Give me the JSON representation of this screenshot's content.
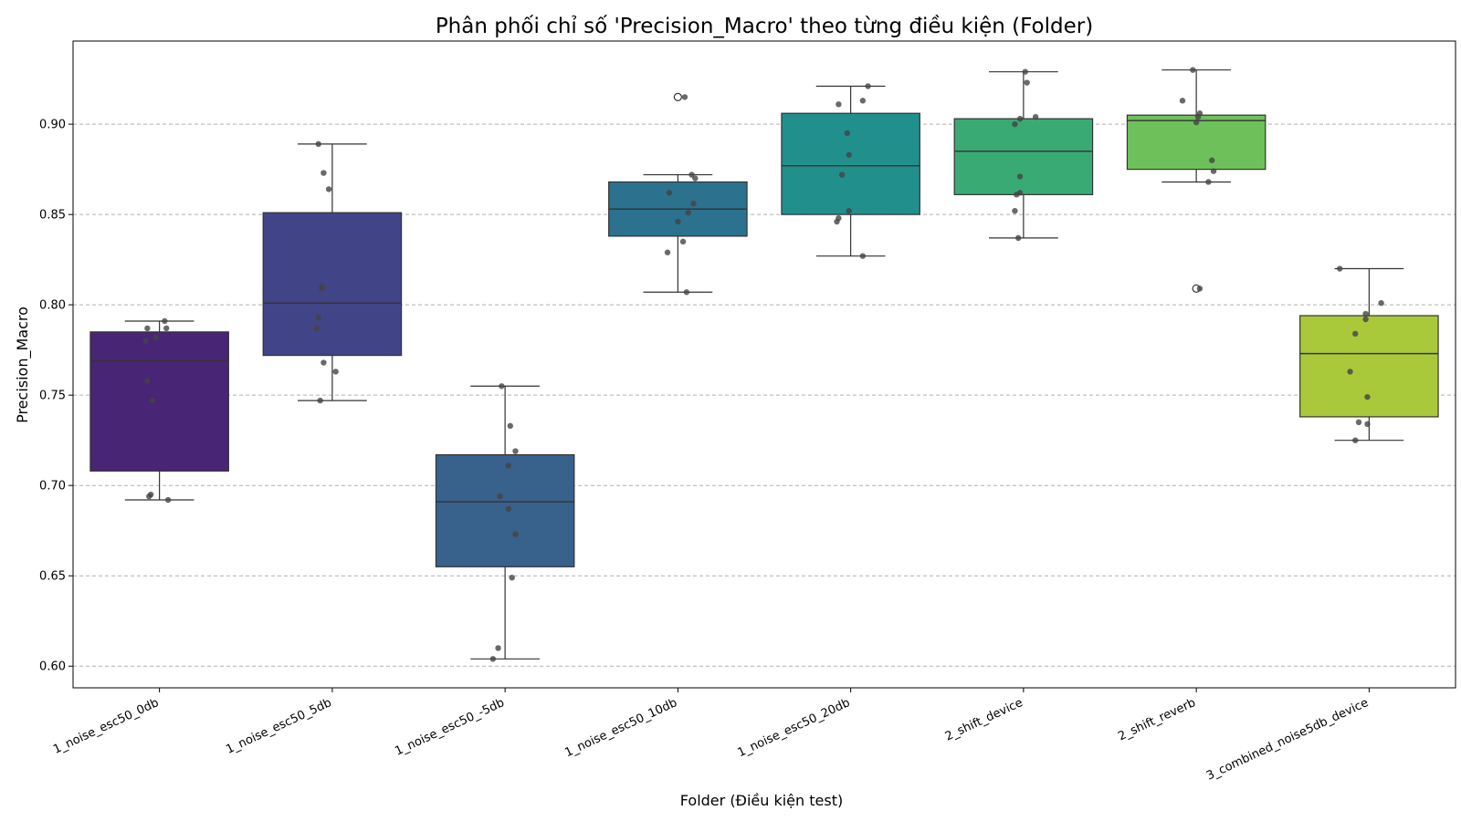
{
  "chart_data": {
    "type": "box",
    "title": "Phân phối chỉ số 'Precision_Macro' theo từng điều kiện (Folder)",
    "xlabel": "Folder (Điều kiện test)",
    "ylabel": "Precision_Macro",
    "ylim": [
      0.588,
      0.946
    ],
    "yticks": [
      "0.60",
      "0.65",
      "0.70",
      "0.75",
      "0.80",
      "0.85",
      "0.90"
    ],
    "grid": "horizontal-dashed",
    "categories": [
      "1_noise_esc50_0db",
      "1_noise_esc50_5db",
      "1_noise_esc50_-5db",
      "1_noise_esc50_10db",
      "1_noise_esc50_20db",
      "2_shift_device",
      "2_shift_reverb",
      "3_combined_noise5db_device"
    ],
    "colors": [
      "#482575",
      "#414487",
      "#38618c",
      "#2c728e",
      "#21908d",
      "#3aaa74",
      "#6ec05b",
      "#aac93a"
    ],
    "boxes": [
      {
        "q1": 0.708,
        "median": 0.769,
        "q3": 0.785,
        "whisker_low": 0.692,
        "whisker_high": 0.791,
        "outliers": []
      },
      {
        "q1": 0.772,
        "median": 0.801,
        "q3": 0.851,
        "whisker_low": 0.747,
        "whisker_high": 0.889,
        "outliers": []
      },
      {
        "q1": 0.655,
        "median": 0.691,
        "q3": 0.717,
        "whisker_low": 0.604,
        "whisker_high": 0.755,
        "outliers": []
      },
      {
        "q1": 0.838,
        "median": 0.853,
        "q3": 0.868,
        "whisker_low": 0.807,
        "whisker_high": 0.872,
        "outliers": [
          0.915
        ]
      },
      {
        "q1": 0.85,
        "median": 0.877,
        "q3": 0.906,
        "whisker_low": 0.827,
        "whisker_high": 0.921,
        "outliers": []
      },
      {
        "q1": 0.861,
        "median": 0.885,
        "q3": 0.903,
        "whisker_low": 0.837,
        "whisker_high": 0.929,
        "outliers": []
      },
      {
        "q1": 0.875,
        "median": 0.902,
        "q3": 0.905,
        "whisker_low": 0.868,
        "whisker_high": 0.93,
        "outliers": [
          0.809
        ]
      },
      {
        "q1": 0.738,
        "median": 0.773,
        "q3": 0.794,
        "whisker_low": 0.725,
        "whisker_high": 0.82,
        "outliers": []
      }
    ],
    "points": [
      [
        0.791,
        0.787,
        0.787,
        0.782,
        0.78,
        0.758,
        0.747,
        0.695,
        0.694,
        0.692
      ],
      [
        0.889,
        0.873,
        0.864,
        0.81,
        0.809,
        0.793,
        0.787,
        0.768,
        0.763,
        0.747
      ],
      [
        0.755,
        0.733,
        0.719,
        0.711,
        0.694,
        0.687,
        0.673,
        0.649,
        0.61,
        0.604
      ],
      [
        0.915,
        0.872,
        0.87,
        0.862,
        0.856,
        0.851,
        0.846,
        0.835,
        0.829,
        0.807
      ],
      [
        0.921,
        0.913,
        0.911,
        0.895,
        0.883,
        0.872,
        0.852,
        0.848,
        0.846,
        0.827
      ],
      [
        0.929,
        0.923,
        0.904,
        0.903,
        0.9,
        0.871,
        0.862,
        0.861,
        0.852,
        0.837
      ],
      [
        0.93,
        0.913,
        0.906,
        0.904,
        0.901,
        0.88,
        0.874,
        0.868,
        0.809
      ],
      [
        0.82,
        0.801,
        0.795,
        0.792,
        0.784,
        0.763,
        0.749,
        0.735,
        0.734,
        0.725
      ]
    ],
    "jitter": [
      [
        0.03,
        -0.07,
        0.04,
        -0.02,
        -0.08,
        -0.07,
        -0.04,
        -0.05,
        -0.06,
        0.05
      ],
      [
        -0.08,
        -0.05,
        -0.02,
        -0.06,
        -0.06,
        -0.08,
        -0.09,
        -0.05,
        0.02,
        -0.07
      ],
      [
        -0.02,
        0.03,
        0.06,
        0.02,
        -0.03,
        0.02,
        0.06,
        0.04,
        -0.04,
        -0.07
      ],
      [
        0.04,
        0.08,
        0.1,
        -0.05,
        0.09,
        0.06,
        0.0,
        0.03,
        -0.06,
        0.05
      ],
      [
        0.1,
        0.07,
        -0.07,
        -0.02,
        -0.01,
        -0.05,
        -0.01,
        -0.07,
        -0.08,
        0.07
      ],
      [
        0.01,
        0.02,
        0.07,
        -0.02,
        -0.05,
        -0.02,
        -0.02,
        -0.04,
        -0.05,
        -0.03
      ],
      [
        -0.02,
        -0.08,
        0.02,
        0.01,
        0.0,
        0.09,
        0.1,
        0.07,
        0.02
      ],
      [
        -0.17,
        0.07,
        -0.02,
        -0.02,
        -0.08,
        -0.11,
        -0.01,
        -0.06,
        -0.01,
        -0.08
      ]
    ]
  }
}
